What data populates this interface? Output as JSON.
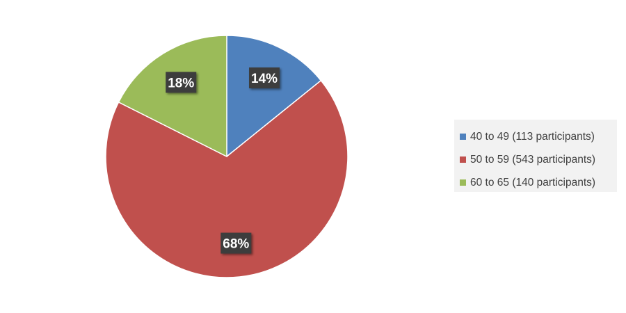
{
  "chart_data": {
    "type": "pie",
    "categories": [
      "40 to 49 (113 participants)",
      "50 to 59 (543 participants)",
      "60 to 65 (140 participants)"
    ],
    "values": [
      113,
      543,
      140
    ],
    "percent_labels": [
      "14%",
      "68%",
      "18%"
    ],
    "colors": [
      "#4f81bd",
      "#c0504d",
      "#9bbb59"
    ],
    "label_box_color": "#3c3c3c",
    "legend_position": "right"
  }
}
